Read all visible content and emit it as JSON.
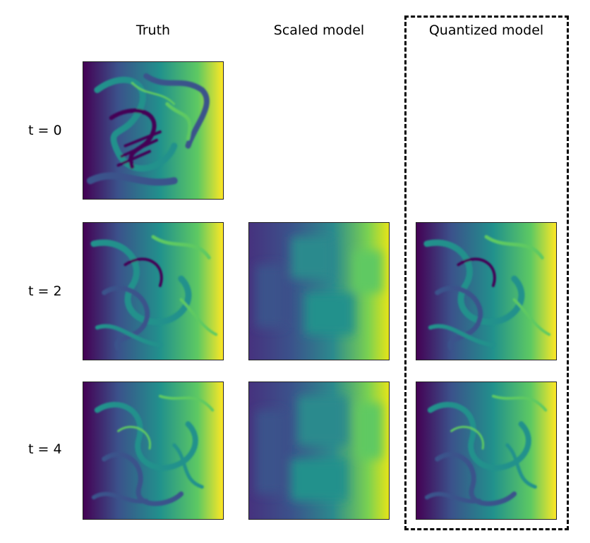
{
  "columns": {
    "truth": "Truth",
    "scaled": "Scaled model",
    "quantized": "Quantized model"
  },
  "rows": {
    "t0": "t = 0",
    "t2": "t = 2",
    "t4": "t = 4"
  },
  "colormap": [
    "#440154",
    "#3b528b",
    "#21918c",
    "#5ec962",
    "#fde725"
  ]
}
